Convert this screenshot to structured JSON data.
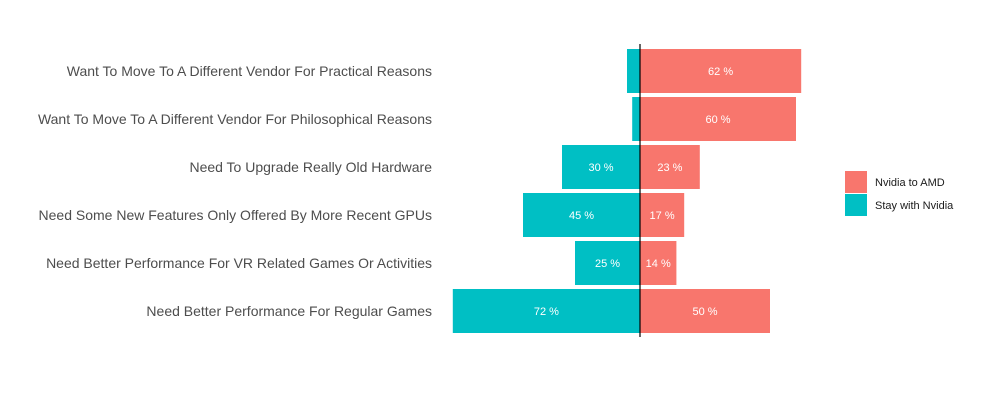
{
  "chart_data": {
    "type": "bar",
    "orientation": "horizontal-diverging",
    "title": "",
    "xlabel": "",
    "ylabel": "",
    "categories": [
      "Want To Move To A Different Vendor For Practical Reasons",
      "Want To Move To A Different Vendor For Philosophical Reasons",
      "Need To Upgrade Really Old Hardware",
      "Need Some New Features Only Offered By More Recent GPUs",
      "Need Better Performance For VR Related Games Or Activities",
      "Need Better Performance For Regular Games"
    ],
    "series": [
      {
        "name": "Nvidia to AMD",
        "direction": "right",
        "color": "#F8766D",
        "values": [
          62,
          60,
          23,
          17,
          14,
          50
        ],
        "labels": [
          "62 %",
          "60 %",
          "23 %",
          "17 %",
          "14 %",
          "50 %"
        ]
      },
      {
        "name": "Stay with Nvidia",
        "direction": "left",
        "color": "#00BFC4",
        "values": [
          5,
          3,
          30,
          45,
          25,
          72
        ],
        "labels": [
          "",
          "",
          "30 %",
          "45 %",
          "25 %",
          "72 %"
        ]
      }
    ],
    "grid": false,
    "legend": {
      "position": "right"
    }
  }
}
